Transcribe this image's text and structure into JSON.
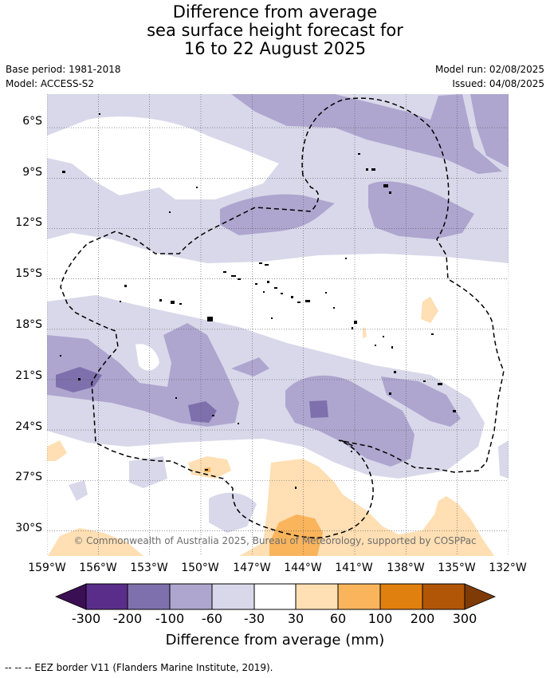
{
  "title_lines": [
    "Difference from average",
    "sea surface height forecast for",
    "16 to 22 August 2025"
  ],
  "meta": {
    "base_period": "Base period: 1981-2018",
    "model": "Model: ACCESS-S2",
    "model_run": "Model run: 02/08/2025",
    "issued": "Issued: 04/08/2025"
  },
  "map": {
    "lat_labels": [
      "6°S",
      "9°S",
      "12°S",
      "15°S",
      "18°S",
      "21°S",
      "24°S",
      "27°S",
      "30°S"
    ],
    "lon_labels": [
      "159°W",
      "156°W",
      "153°W",
      "150°W",
      "147°W",
      "144°W",
      "141°W",
      "138°W",
      "135°W",
      "132°W"
    ],
    "copyright": "© Commonwealth of Australia 2025, Bureau of Meteorology, supported by COSPPac",
    "extent": {
      "lon_min": -159,
      "lon_max": -132,
      "lat_min": -31.5,
      "lat_max": -4
    }
  },
  "colorbar": {
    "title": "Difference from average (mm)",
    "tick_labels": [
      "-300",
      "-200",
      "-100",
      "-60",
      "-30",
      "30",
      "60",
      "100",
      "200",
      "300"
    ],
    "colors": [
      "#3b0f54",
      "#5b2d8a",
      "#7e70ad",
      "#aea6cf",
      "#d8d8ea",
      "#ffffff",
      "#ffdfb3",
      "#f9b45c",
      "#e0810f",
      "#b15607",
      "#7e3b05"
    ]
  },
  "footnote": "--  --  -- EEZ border V11 (Flanders Marine Institute, 2019)."
}
